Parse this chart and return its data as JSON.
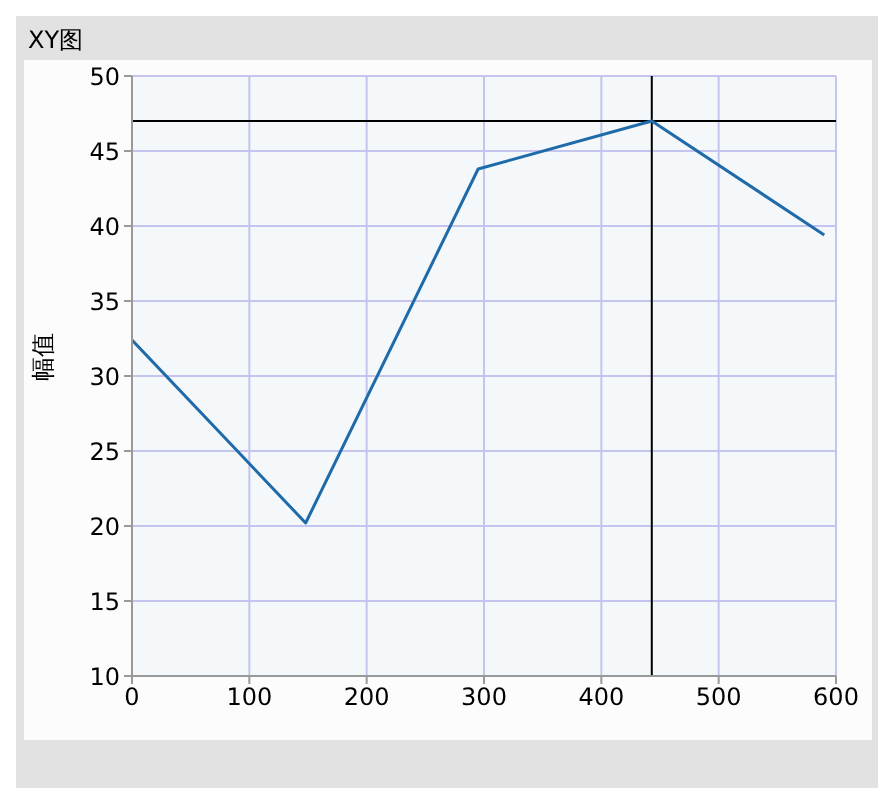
{
  "chart_data": {
    "type": "line",
    "title": "XY图",
    "ylabel": "幅值",
    "x": [
      0,
      148,
      295,
      443,
      590
    ],
    "series": [
      {
        "color": "#1f6aa8",
        "values": [
          32.4,
          20.2,
          43.8,
          47,
          39.4
        ]
      }
    ],
    "xlim": [
      0,
      600
    ],
    "xticks": [
      0,
      100,
      200,
      300,
      400,
      500,
      600
    ],
    "ylim": [
      10,
      50
    ],
    "yticks": [
      10,
      15,
      20,
      25,
      30,
      35,
      40,
      45,
      50
    ],
    "grid": true,
    "marker": "none",
    "line_style": "solid",
    "ref_lines": [
      {
        "axis": "x",
        "value": 443,
        "color": "#000000"
      },
      {
        "axis": "y",
        "value": 47,
        "color": "#000000"
      }
    ]
  }
}
